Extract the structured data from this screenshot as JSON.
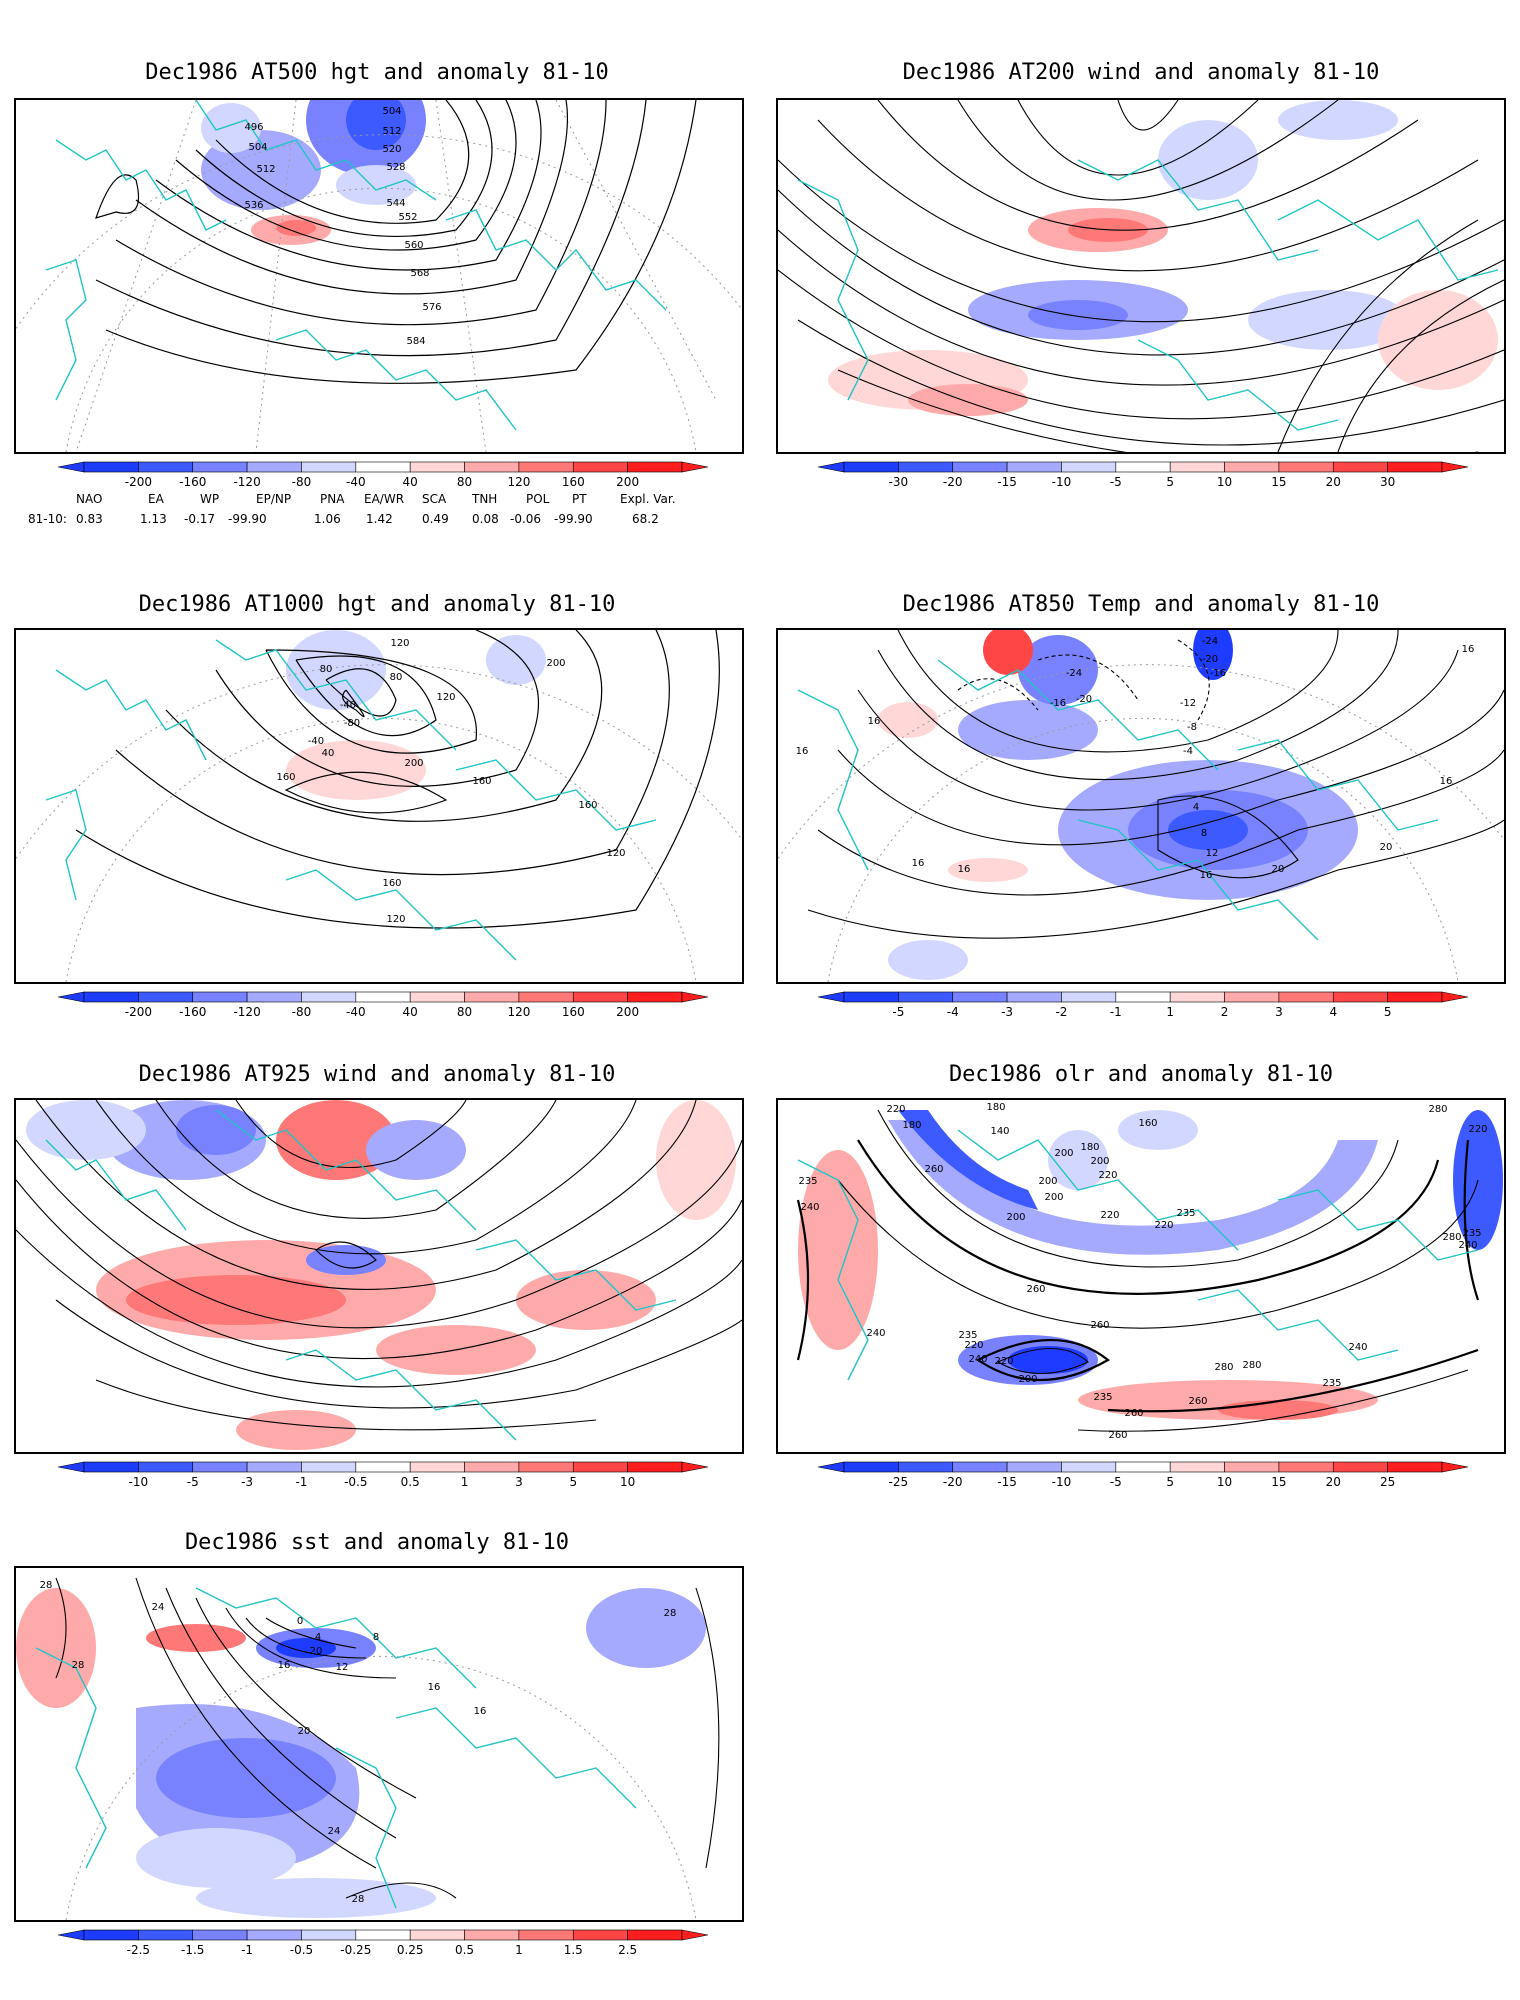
{
  "panels": [
    {
      "id": "p1",
      "title": "Dec1986 AT500 hgt and anomaly 81-10",
      "colorbar_labels": [
        "-200",
        "-160",
        "-120",
        "-80",
        "-40",
        "40",
        "80",
        "120",
        "160",
        "200"
      ],
      "contour_labels": [
        "496",
        "504",
        "504",
        "512",
        "512",
        "520",
        "528",
        "536",
        "544",
        "552",
        "560",
        "568",
        "576",
        "584"
      ]
    },
    {
      "id": "p2",
      "title": "Dec1986 AT200 wind and anomaly 81-10",
      "colorbar_labels": [
        "-30",
        "-20",
        "-15",
        "-10",
        "-5",
        "5",
        "10",
        "15",
        "20",
        "30"
      ],
      "contour_labels": []
    },
    {
      "id": "p3",
      "title": "Dec1986 AT1000 hgt and anomaly 81-10",
      "colorbar_labels": [
        "-200",
        "-160",
        "-120",
        "-80",
        "-40",
        "40",
        "80",
        "120",
        "160",
        "200"
      ],
      "contour_labels": [
        "-40",
        "-80",
        "-40",
        "40",
        "80",
        "80",
        "120",
        "120",
        "200",
        "160",
        "160",
        "200",
        "160",
        "120",
        "160",
        "120"
      ]
    },
    {
      "id": "p4",
      "title": "Dec1986 AT850 Temp and anomaly 81-10",
      "colorbar_labels": [
        "-5",
        "-4",
        "-3",
        "-2",
        "-1",
        "1",
        "2",
        "3",
        "4",
        "5"
      ],
      "contour_labels": [
        "-24",
        "-20",
        "-16",
        "-24",
        "-20",
        "-16",
        "-12",
        "-8",
        "-4",
        "16",
        "16",
        "4",
        "8",
        "12",
        "16",
        "16",
        "16",
        "20",
        "20",
        "16",
        "16"
      ]
    },
    {
      "id": "p5",
      "title": "Dec1986 AT925 wind and anomaly 81-10",
      "colorbar_labels": [
        "-10",
        "-5",
        "-3",
        "-1",
        "-0.5",
        "0.5",
        "1",
        "3",
        "5",
        "10"
      ],
      "contour_labels": []
    },
    {
      "id": "p6",
      "title": "Dec1986 olr and anomaly 81-10",
      "colorbar_labels": [
        "-25",
        "-20",
        "-15",
        "-10",
        "-5",
        "5",
        "10",
        "15",
        "20",
        "25"
      ],
      "contour_labels": [
        "220",
        "180",
        "140",
        "160",
        "180",
        "200",
        "180",
        "200",
        "220",
        "200",
        "200",
        "200",
        "220",
        "235",
        "235",
        "220",
        "240",
        "260",
        "260",
        "280",
        "240",
        "220",
        "235",
        "260",
        "240",
        "220",
        "200",
        "235",
        "260",
        "280",
        "280",
        "240",
        "235",
        "260",
        "280",
        "240",
        "235",
        "220",
        "260"
      ]
    },
    {
      "id": "p7",
      "title": "Dec1986 sst and anomaly 81-10",
      "colorbar_labels": [
        "-2.5",
        "-1.5",
        "-1",
        "-0.5",
        "-0.25",
        "0.25",
        "0.5",
        "1",
        "1.5",
        "2.5"
      ],
      "contour_labels": [
        "28",
        "28",
        "24",
        "20",
        "16",
        "12",
        "8",
        "4",
        "0",
        "16",
        "16",
        "20",
        "24",
        "28",
        "28"
      ]
    }
  ],
  "teleconnection": {
    "row_label": "81-10:",
    "headers": [
      "NAO",
      "EA",
      "WP",
      "EP/NP",
      "PNA",
      "EA/WR",
      "SCA",
      "TNH",
      "POL",
      "PT",
      "Expl. Var."
    ],
    "values": [
      "0.83",
      "1.13",
      "-0.17",
      "-99.90",
      "1.06",
      "1.42",
      "0.49",
      "0.08",
      "-0.06",
      "-99.90",
      "68.2"
    ]
  },
  "colors": {
    "coast": "#20c4c4",
    "contour": "#000000",
    "grid": "#9a9a9a",
    "blue_ramp": [
      "#1e3cff",
      "#3c5aff",
      "#7882ff",
      "#a5aaff",
      "#d2d7ff"
    ],
    "red_ramp": [
      "#ffd7d7",
      "#ffaaaa",
      "#ff7878",
      "#ff4646",
      "#ff1e1e"
    ]
  }
}
